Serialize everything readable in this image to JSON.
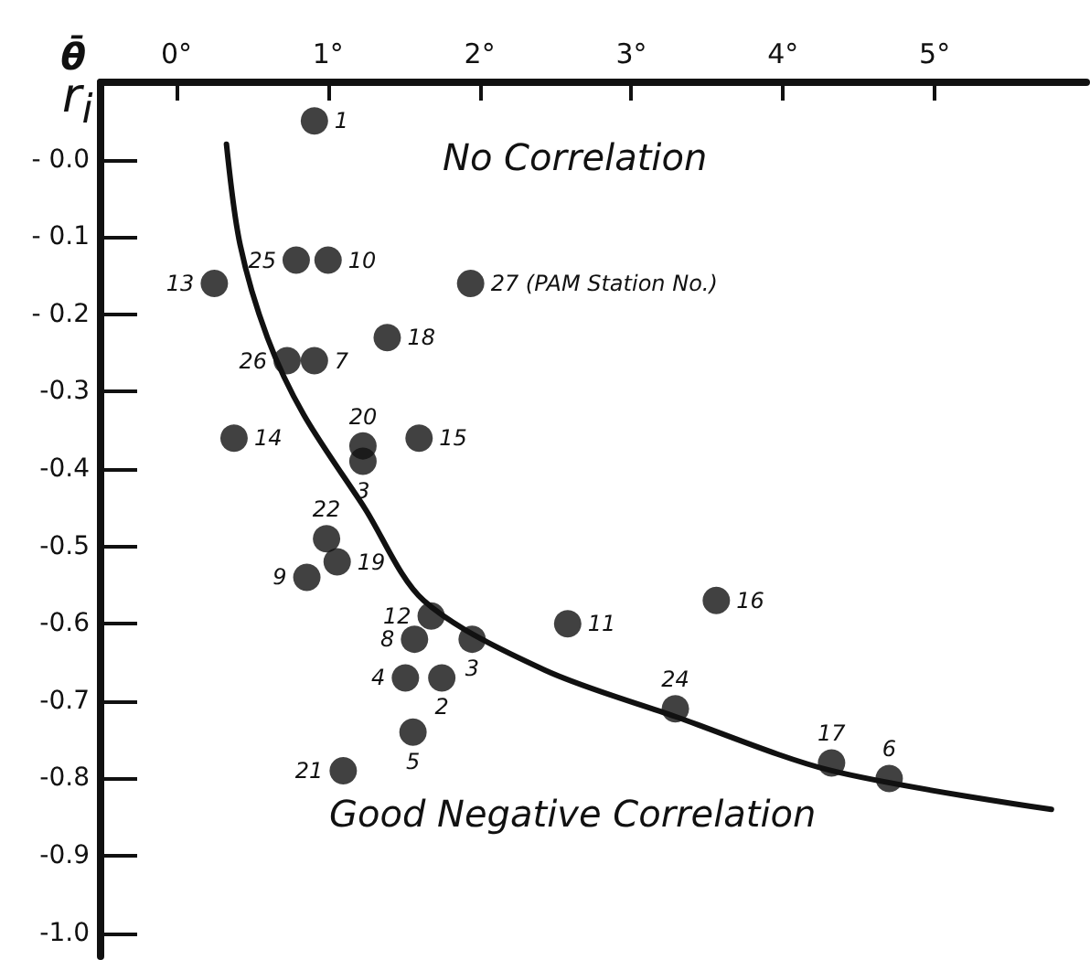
{
  "chart_data": {
    "type": "scatter",
    "xlabel": "θ̄",
    "ylabel": "r$_{i}$",
    "xlim": [
      -0.5,
      6
    ],
    "ylim": [
      -1.03,
      0.1
    ],
    "xticks": [
      {
        "value": 0,
        "label": "0°"
      },
      {
        "value": 1,
        "label": "1°"
      },
      {
        "value": 2,
        "label": "2°"
      },
      {
        "value": 3,
        "label": "3°"
      },
      {
        "value": 4,
        "label": "4°"
      },
      {
        "value": 5,
        "label": "5°"
      }
    ],
    "yticks": [
      {
        "value": 0,
        "label": "- 0.0"
      },
      {
        "value": -0.1,
        "label": "- 0.1"
      },
      {
        "value": -0.2,
        "label": "- 0.2"
      },
      {
        "value": -0.3,
        "label": "-0.3"
      },
      {
        "value": -0.4,
        "label": "-0.4"
      },
      {
        "value": -0.5,
        "label": "-0.5"
      },
      {
        "value": -0.6,
        "label": "-0.6"
      },
      {
        "value": -0.7,
        "label": "-0.7"
      },
      {
        "value": -0.8,
        "label": "-0.8"
      },
      {
        "value": -0.9,
        "label": "-0.9"
      },
      {
        "value": -1.0,
        "label": "-1.0"
      }
    ],
    "grid": false,
    "annotations": [
      "No Correlation",
      "Good Negative Correlation",
      {
        "text": "1",
        "x": 0.91,
        "y": 0.05
      },
      {
        "text": "25",
        "x": 0.79,
        "y": -0.13
      },
      {
        "text": "10",
        "x": 1.0,
        "y": -0.13
      },
      {
        "text": "13",
        "x": 0.25,
        "y": -0.16
      },
      {
        "text": "27 (PAM Station No.)",
        "x": 1.94,
        "y": -0.16
      },
      {
        "text": "18",
        "x": 1.39,
        "y": -0.23
      },
      {
        "text": "26",
        "x": 0.73,
        "y": -0.26
      },
      {
        "text": "7",
        "x": 0.91,
        "y": -0.26
      },
      {
        "text": "14",
        "x": 0.38,
        "y": -0.36
      },
      {
        "text": "20",
        "x": 1.23,
        "y": -0.37
      },
      {
        "text": "3",
        "x": 1.23,
        "y": -0.39
      },
      {
        "text": "15",
        "x": 1.6,
        "y": -0.36
      },
      {
        "text": "22",
        "x": 0.99,
        "y": -0.49
      },
      {
        "text": "19",
        "x": 1.06,
        "y": -0.52
      },
      {
        "text": "9",
        "x": 0.86,
        "y": -0.54
      },
      {
        "text": "12",
        "x": 1.68,
        "y": -0.59
      },
      {
        "text": "8",
        "x": 1.57,
        "y": -0.62
      },
      {
        "text": "3",
        "x": 1.95,
        "y": -0.62
      },
      {
        "text": "4",
        "x": 1.51,
        "y": -0.67
      },
      {
        "text": "2",
        "x": 1.75,
        "y": -0.67
      },
      {
        "text": "5",
        "x": 1.56,
        "y": -0.74
      },
      {
        "text": "21",
        "x": 1.1,
        "y": -0.79
      },
      {
        "text": "11",
        "x": 2.58,
        "y": -0.6
      },
      {
        "text": "16",
        "x": 3.56,
        "y": -0.57
      },
      {
        "text": "24",
        "x": 3.29,
        "y": -0.71
      },
      {
        "text": "17",
        "x": 4.32,
        "y": -0.78
      },
      {
        "text": "6",
        "x": 4.7,
        "y": -0.8
      }
    ],
    "series": [
      {
        "marker": "circle",
        "color": "#111111",
        "x": [
          0.91,
          0.79,
          1.0,
          0.25,
          1.94,
          1.39,
          0.73,
          0.91,
          0.38,
          1.23,
          1.23,
          1.6,
          0.99,
          1.06,
          0.86,
          1.68,
          1.57,
          1.95,
          1.51,
          1.75,
          1.56,
          1.1,
          2.58,
          3.56,
          3.29,
          4.32,
          4.7
        ],
        "values": [
          0.05,
          -0.13,
          -0.13,
          -0.16,
          -0.16,
          -0.23,
          -0.26,
          -0.26,
          -0.36,
          -0.37,
          -0.39,
          -0.36,
          -0.49,
          -0.52,
          -0.54,
          -0.59,
          -0.62,
          -0.62,
          -0.67,
          -0.67,
          -0.74,
          -0.79,
          -0.6,
          -0.57,
          -0.71,
          -0.78,
          -0.8
        ]
      },
      {
        "type": "line",
        "color": "#111111",
        "x": [
          0.33,
          0.42,
          0.6,
          0.84,
          1.24,
          1.63,
          2.43,
          3.29,
          4.32,
          5.77
        ],
        "values": [
          0.02,
          -0.11,
          -0.23,
          -0.33,
          -0.45,
          -0.57,
          -0.66,
          -0.72,
          -0.79,
          -0.84
        ]
      }
    ]
  }
}
